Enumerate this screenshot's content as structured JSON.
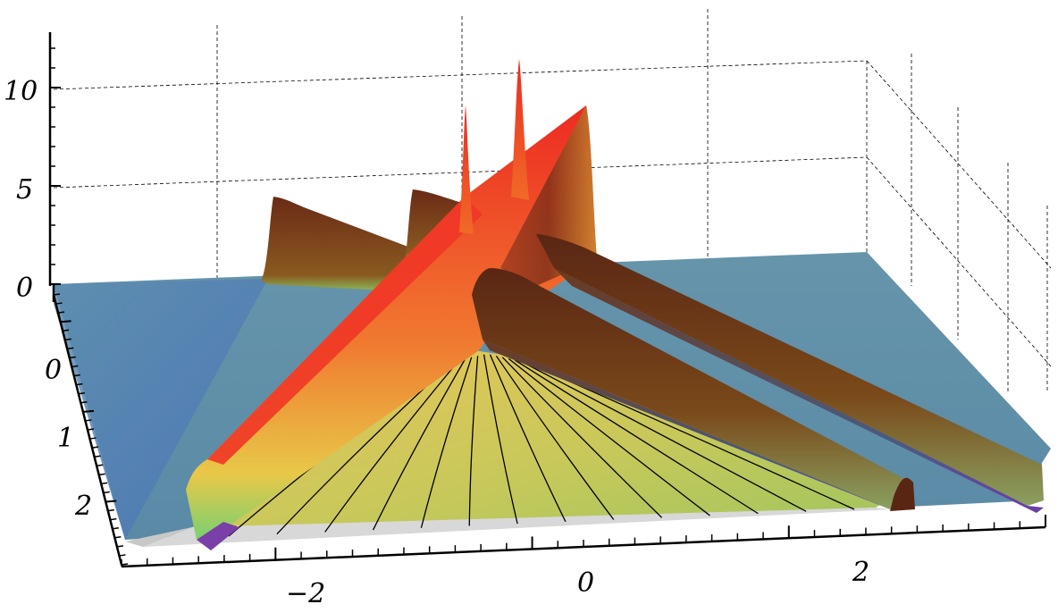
{
  "chart_data": {
    "type": "surface",
    "title": "",
    "xlabel": "",
    "ylabel": "",
    "zlabel": "",
    "grid": true,
    "box": true,
    "colors": {
      "plane": "#5f8fa8",
      "plane_front": "#4f7fb0",
      "wedge_light": "#e0c85a",
      "wedge_dark": "#a6c85a",
      "ridge_peak": "#ee2a22",
      "ridge_mid": "#f08a30",
      "ridge_low": "#8ad06a",
      "ridge_shadow": "#6a2a18",
      "trough": "#7a3fa8"
    },
    "x_axis": {
      "range": [
        -3.5,
        3.5
      ],
      "ticks": [
        {
          "label": "−2",
          "value": -2
        },
        {
          "label": "0",
          "value": 0
        },
        {
          "label": "2",
          "value": 2
        }
      ]
    },
    "y_axis": {
      "range": [
        -0.2,
        3.0
      ],
      "ticks": [
        {
          "label": "0",
          "value": 0
        },
        {
          "label": "1",
          "value": 1
        },
        {
          "label": "2",
          "value": 2
        }
      ]
    },
    "z_axis": {
      "range": [
        -1,
        13
      ],
      "ticks": [
        {
          "label": "0",
          "value": 0
        },
        {
          "label": "5",
          "value": 5
        },
        {
          "label": "10",
          "value": 10
        }
      ]
    },
    "features": [
      {
        "kind": "soliton_ridge",
        "height": 8,
        "peak": 11.5
      },
      {
        "kind": "soliton_ridge",
        "height": 4
      },
      {
        "kind": "soliton_ridge",
        "height": 4
      },
      {
        "kind": "spike",
        "height": 12
      }
    ]
  }
}
